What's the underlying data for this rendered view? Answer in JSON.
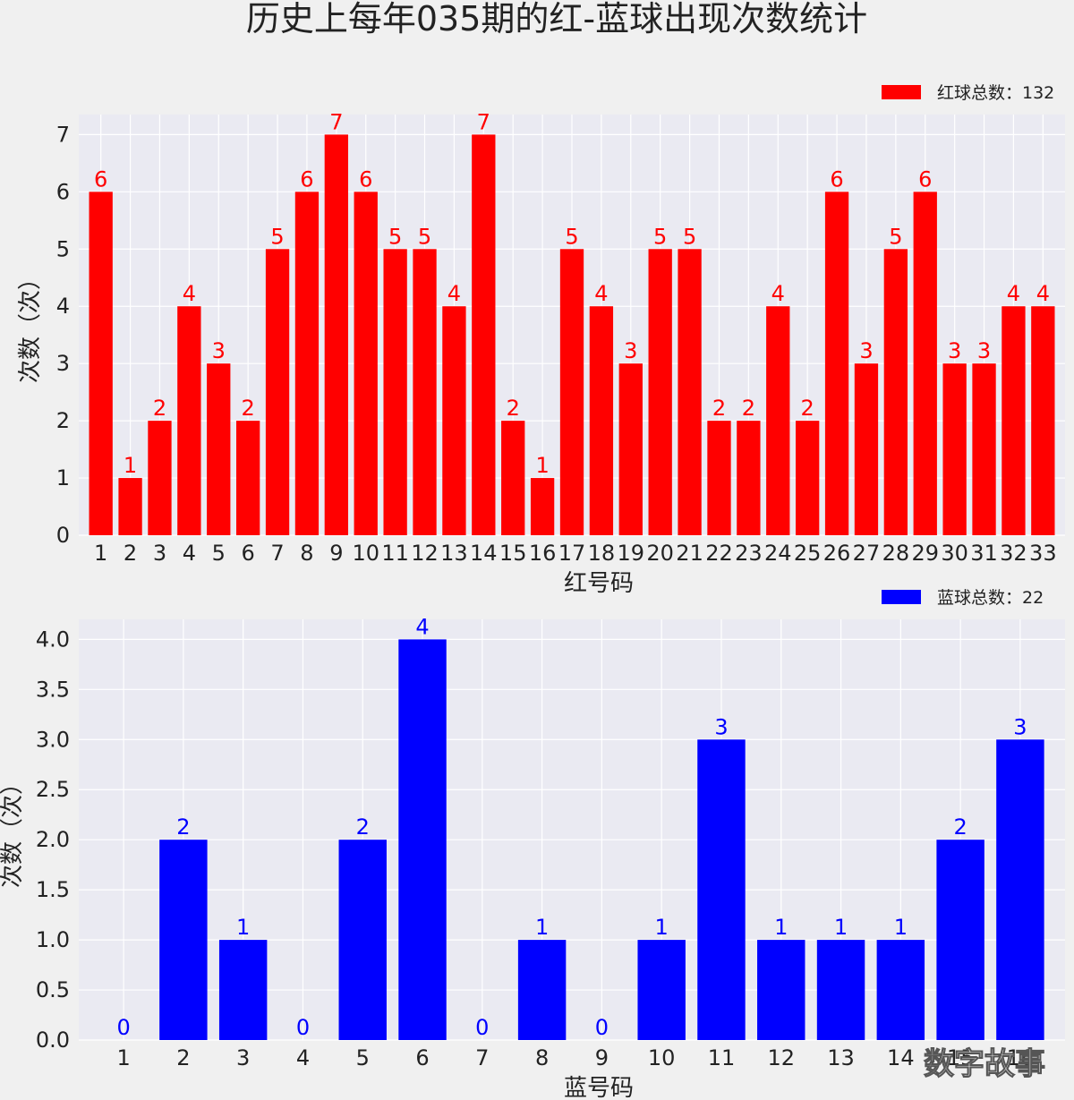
{
  "figure_title": "历史上每年035期的红-蓝球出现次数统计",
  "watermark": "数字故事",
  "colors": {
    "background": "#f0f0f0",
    "plot_bg": "#eaeaf2",
    "grid": "#ffffff",
    "red": "#ff0000",
    "blue": "#0000ff",
    "text": "#222222"
  },
  "chart_data": [
    {
      "type": "bar",
      "color": "red",
      "categories": [
        "1",
        "2",
        "3",
        "4",
        "5",
        "6",
        "7",
        "8",
        "9",
        "10",
        "11",
        "12",
        "13",
        "14",
        "15",
        "16",
        "17",
        "18",
        "19",
        "20",
        "21",
        "22",
        "23",
        "24",
        "25",
        "26",
        "27",
        "28",
        "29",
        "30",
        "31",
        "32",
        "33"
      ],
      "values": [
        6,
        1,
        2,
        4,
        3,
        2,
        5,
        6,
        7,
        6,
        5,
        5,
        4,
        7,
        2,
        1,
        5,
        4,
        3,
        5,
        5,
        2,
        2,
        4,
        2,
        6,
        3,
        5,
        6,
        3,
        3,
        4,
        4
      ],
      "xlabel": "红号码",
      "ylabel": "次数（次）",
      "ylim": [
        0,
        7.35
      ],
      "yticks": [
        "0",
        "1",
        "2",
        "3",
        "4",
        "5",
        "6",
        "7"
      ],
      "legend": "红球总数：132",
      "legend_position": "top-right",
      "grid": true
    },
    {
      "type": "bar",
      "color": "blue",
      "categories": [
        "1",
        "2",
        "3",
        "4",
        "5",
        "6",
        "7",
        "8",
        "9",
        "10",
        "11",
        "12",
        "13",
        "14",
        "15",
        "16"
      ],
      "values": [
        0,
        2,
        1,
        0,
        2,
        4,
        0,
        1,
        0,
        1,
        3,
        1,
        1,
        1,
        2,
        3
      ],
      "xlabel": "蓝号码",
      "ylabel": "次数（次）",
      "ylim": [
        0,
        4.2
      ],
      "yticks": [
        "0.0",
        "0.5",
        "1.0",
        "1.5",
        "2.0",
        "2.5",
        "3.0",
        "3.5",
        "4.0"
      ],
      "legend": "蓝球总数：22",
      "legend_position": "top-right",
      "grid": true
    }
  ]
}
